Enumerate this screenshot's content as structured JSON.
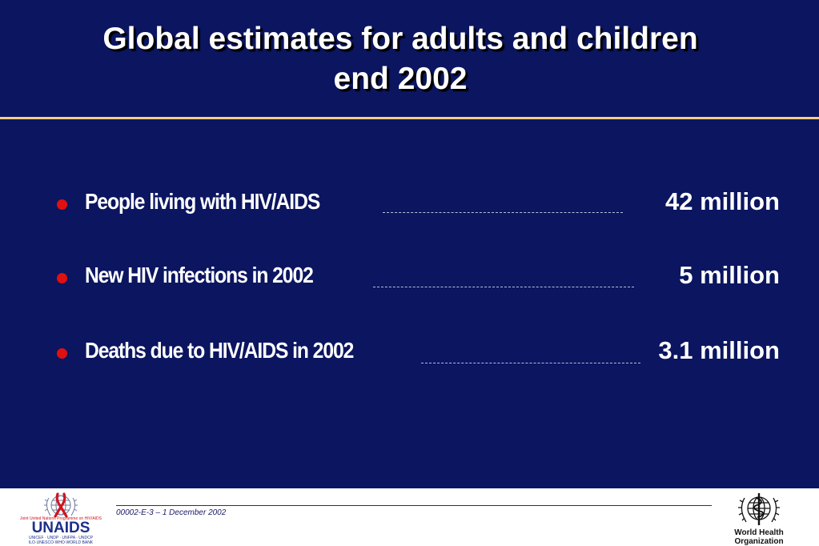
{
  "slide": {
    "title_line1": "Global estimates for adults and children",
    "title_line2": "end 2002",
    "background_color": "#0b1560",
    "rule_color": "#f4ce86",
    "bullet_color": "#e01010",
    "bullets": [
      {
        "label": "People living with HIV/AIDS",
        "value": "42 million"
      },
      {
        "label": "New HIV infections in 2002",
        "value": "5 million"
      },
      {
        "label": "Deaths due to HIV/AIDS in 2002",
        "value": "3.1 million"
      }
    ]
  },
  "footer": {
    "reference": "00002-E-3 – 1 December 2002",
    "unaids_logo": {
      "name": "UNAIDS",
      "tagline": "Joint United Nations Programme on HIV/AIDS",
      "sponsors_line1": "UNICEF · UNDP · UNFPA · UNDCP",
      "sponsors_line2": "ILO·UNESCO·WHO·WORLD BANK"
    },
    "who_logo": {
      "line1": "World Health",
      "line2": "Organization"
    }
  }
}
